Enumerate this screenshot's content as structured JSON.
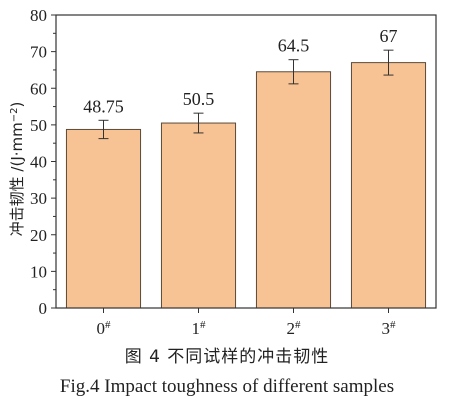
{
  "chart_data": {
    "type": "bar",
    "categories": [
      "0#",
      "1#",
      "2#",
      "3#"
    ],
    "category_labels": [
      {
        "main": "0",
        "sup": "#"
      },
      {
        "main": "1",
        "sup": "#"
      },
      {
        "main": "2",
        "sup": "#"
      },
      {
        "main": "3",
        "sup": "#"
      }
    ],
    "values": [
      48.75,
      50.5,
      64.5,
      67
    ],
    "value_labels": [
      "48.75",
      "50.5",
      "64.5",
      "67"
    ],
    "error": [
      2.5,
      2.7,
      3.3,
      3.4
    ],
    "ylabel_main": "冲击韧性 /(J·mm",
    "ylabel_sup": "−2",
    "ylabel_close": ")",
    "ylim": [
      0,
      80
    ],
    "yticks": [
      0,
      10,
      20,
      30,
      40,
      50,
      60,
      70,
      80
    ],
    "grid": false,
    "colors": {
      "bar_fill": "#f8c394",
      "bar_edge": "#5a4a3a",
      "axis": "#333333"
    }
  },
  "caption": {
    "zh": "图 4   不同试样的冲击韧性",
    "en": "Fig.4   Impact toughness of different samples"
  }
}
